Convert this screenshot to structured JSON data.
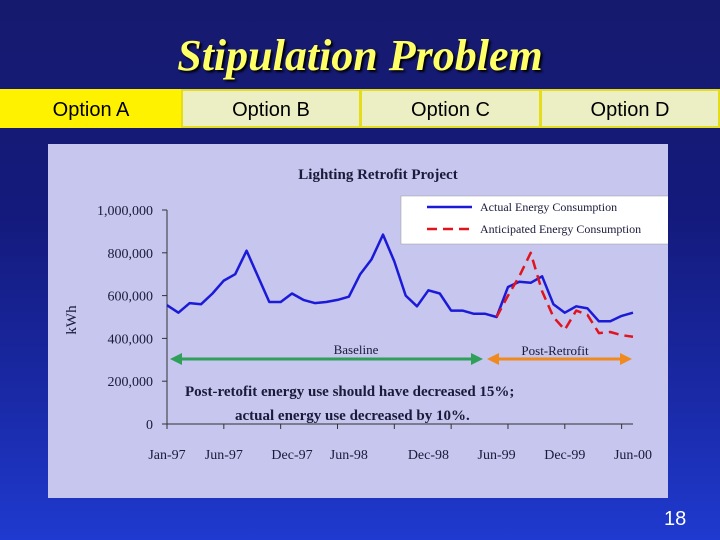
{
  "slide": {
    "title": "Stipulation Problem",
    "page_number": "18"
  },
  "tabs": [
    {
      "label": "Option A",
      "active": true
    },
    {
      "label": "Option B",
      "active": false
    },
    {
      "label": "Option C",
      "active": false
    },
    {
      "label": "Option D",
      "active": false
    }
  ],
  "colors": {
    "actual": "#1a1ad8",
    "anticipated": "#e0141e",
    "baseline_arrow": "#2fa05a",
    "post_retrofit_arrow": "#f08a1e",
    "highlight_tab": "#fff200"
  },
  "chart_data": {
    "type": "line",
    "title": "Lighting Retrofit Project",
    "xlabel": "",
    "ylabel": "kWh",
    "ylim": [
      0,
      1000000
    ],
    "y_ticks": [
      0,
      200000,
      400000,
      600000,
      800000,
      1000000
    ],
    "y_tick_labels": [
      "0",
      "200,000",
      "400,000",
      "600,000",
      "800,000",
      "1,000,000"
    ],
    "x_ticks": [
      0,
      5,
      10,
      15,
      20,
      25,
      30,
      35,
      40
    ],
    "x_tick_labels": [
      "Jan-97",
      "Jun-97",
      "Dec-97",
      "Jun-98",
      "Dec-98",
      "Jun-99",
      "Dec-99",
      "Jun-00"
    ],
    "x_tick_positions": [
      0,
      5,
      11,
      16,
      23,
      29,
      35,
      41
    ],
    "grid": false,
    "legend_position": "top-right",
    "series": [
      {
        "name": "Actual Energy Consumption",
        "style": "solid",
        "x": [
          0,
          1,
          2,
          3,
          4,
          5,
          6,
          7,
          8,
          9,
          10,
          11,
          12,
          13,
          14,
          15,
          16,
          17,
          18,
          19,
          20,
          21,
          22,
          23,
          24,
          25,
          26,
          27,
          28,
          29,
          30,
          31,
          32,
          33,
          34,
          35,
          36,
          37,
          38,
          39,
          40,
          41,
          42,
          43,
          44,
          45
        ],
        "values": [
          555000,
          520000,
          565000,
          560000,
          610000,
          670000,
          700000,
          810000,
          690000,
          570000,
          570000,
          610000,
          580000,
          565000,
          570000,
          580000,
          595000,
          700000,
          770000,
          885000,
          760000,
          600000,
          550000,
          625000,
          610000,
          530000,
          530000,
          515000,
          515000,
          500000,
          640000,
          665000,
          660000,
          690000,
          560000,
          520000,
          550000,
          540000,
          480000,
          480000,
          505000,
          520000,
          null,
          null,
          null,
          null
        ]
      },
      {
        "name": "Anticipated Energy Consumption",
        "style": "dashed",
        "x": [
          29,
          30,
          31,
          32,
          33,
          34,
          35,
          36,
          37,
          38,
          39,
          40,
          41
        ],
        "values": [
          500000,
          600000,
          690000,
          800000,
          620000,
          500000,
          440000,
          530000,
          510000,
          425000,
          430000,
          415000,
          408000
        ]
      }
    ],
    "annotations": {
      "baseline_label": "Baseline",
      "post_retrofit_label": "Post-Retrofit",
      "note_line1": "Post-retofit energy use should have decreased 15%;",
      "note_line2": "actual energy use decreased by 10%."
    }
  }
}
